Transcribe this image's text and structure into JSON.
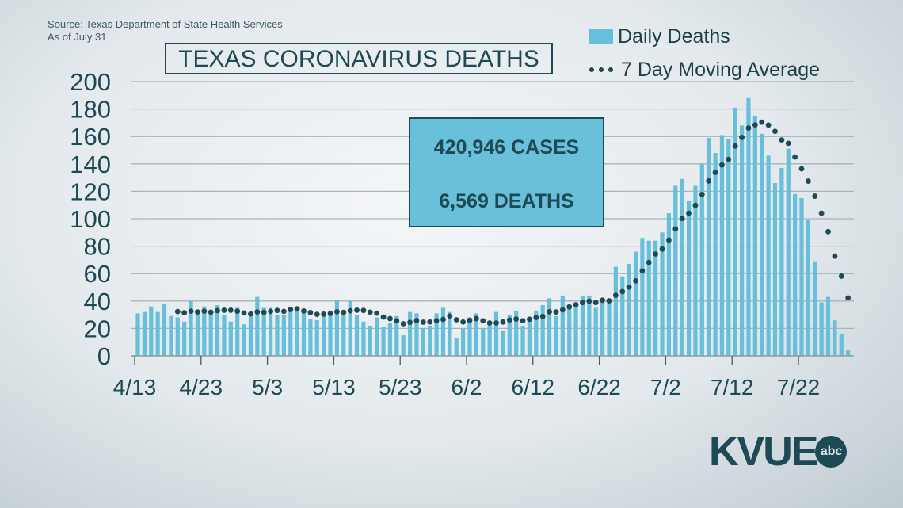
{
  "source": "Source: Texas Department of State Health Services",
  "as_of": "As of July 31",
  "logo": {
    "text": "KVUE",
    "network": "abc"
  },
  "info_box": {
    "cases": "420,946 CASES",
    "deaths": "6,569 DEATHS"
  },
  "colors": {
    "bar": "#67bfdb",
    "average": "#1d4a55",
    "text": "#1d4a55"
  },
  "chart_data": {
    "type": "bar",
    "title": "TEXAS CORONAVIRUS DEATHS",
    "xlabel": "",
    "ylabel": "",
    "ylim": [
      0,
      200
    ],
    "yticks": [
      "0",
      "20",
      "40",
      "60",
      "80",
      "100",
      "120",
      "140",
      "160",
      "180",
      "200"
    ],
    "xticks": [
      "4/13",
      "4/23",
      "5/3",
      "5/13",
      "5/23",
      "6/2",
      "6/12",
      "6/22",
      "7/2",
      "7/12",
      "7/22"
    ],
    "start_date": "4/13",
    "grid": true,
    "legend": {
      "position": "top-right",
      "bars": "Daily Deaths",
      "line": "7 Day Moving Average"
    },
    "series": [
      {
        "name": "Daily Deaths",
        "type": "bar",
        "values": [
          31,
          32,
          36,
          32,
          38,
          29,
          28,
          25,
          40,
          32,
          36,
          33,
          37,
          30,
          25,
          35,
          23,
          31,
          43,
          35,
          35,
          30,
          30,
          32,
          35,
          32,
          27,
          26,
          31,
          33,
          41,
          32,
          40,
          30,
          25,
          22,
          28,
          21,
          24,
          29,
          15,
          32,
          31,
          20,
          22,
          31,
          35,
          32,
          13,
          20,
          28,
          31,
          20,
          24,
          32,
          18,
          30,
          33,
          22,
          28,
          33,
          37,
          42,
          29,
          44,
          37,
          39,
          44,
          44,
          35,
          41,
          41,
          65,
          58,
          67,
          76,
          86,
          84,
          84,
          90,
          104,
          124,
          129,
          113,
          124,
          140,
          159,
          148,
          161,
          158,
          181,
          168,
          188,
          175,
          162,
          146,
          126,
          137,
          151,
          118,
          115,
          99,
          69,
          39,
          43,
          26,
          16,
          4
        ]
      },
      {
        "name": "7 Day Moving Average",
        "type": "line",
        "derived": "7-day trailing mean of Daily Deaths"
      }
    ]
  }
}
